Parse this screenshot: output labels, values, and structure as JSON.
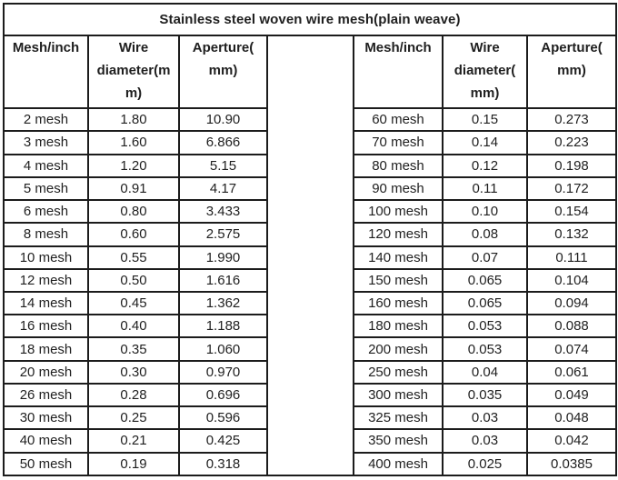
{
  "title": "Stainless steel woven wire mesh(plain weave)",
  "colors": {
    "background": "#ffffff",
    "border": "#1c1c1c",
    "text": "#1f1f1f"
  },
  "chart_data": {
    "type": "table",
    "title": "Stainless steel woven wire mesh(plain weave)",
    "tables": [
      {
        "position": "left",
        "headers": [
          "Mesh/inch",
          "Wire diameter(mm)",
          "Aperture(mm)"
        ],
        "header_display": [
          "Mesh/inch",
          "Wire\ndiameter(m\nm)",
          "Aperture(\nmm)"
        ],
        "rows": [
          [
            "2 mesh",
            "1.80",
            "10.90"
          ],
          [
            "3 mesh",
            "1.60",
            "6.866"
          ],
          [
            "4 mesh",
            "1.20",
            "5.15"
          ],
          [
            "5 mesh",
            "0.91",
            "4.17"
          ],
          [
            "6 mesh",
            "0.80",
            "3.433"
          ],
          [
            "8 mesh",
            "0.60",
            "2.575"
          ],
          [
            "10 mesh",
            "0.55",
            "1.990"
          ],
          [
            "12 mesh",
            "0.50",
            "1.616"
          ],
          [
            "14 mesh",
            "0.45",
            "1.362"
          ],
          [
            "16 mesh",
            "0.40",
            "1.188"
          ],
          [
            "18 mesh",
            "0.35",
            "1.060"
          ],
          [
            "20 mesh",
            "0.30",
            "0.970"
          ],
          [
            "26 mesh",
            "0.28",
            "0.696"
          ],
          [
            "30 mesh",
            "0.25",
            "0.596"
          ],
          [
            "40 mesh",
            "0.21",
            "0.425"
          ],
          [
            "50 mesh",
            "0.19",
            "0.318"
          ]
        ]
      },
      {
        "position": "right",
        "headers": [
          "Mesh/inch",
          "Wire diameter(mm)",
          "Aperture(mm)"
        ],
        "header_display": [
          "Mesh/inch",
          "Wire\ndiameter(\nmm)",
          "Aperture(\nmm)"
        ],
        "rows": [
          [
            "60 mesh",
            "0.15",
            "0.273"
          ],
          [
            "70 mesh",
            "0.14",
            "0.223"
          ],
          [
            "80 mesh",
            "0.12",
            "0.198"
          ],
          [
            "90 mesh",
            "0.11",
            "0.172"
          ],
          [
            "100 mesh",
            "0.10",
            "0.154"
          ],
          [
            "120 mesh",
            "0.08",
            "0.132"
          ],
          [
            "140 mesh",
            "0.07",
            "0.111"
          ],
          [
            "150 mesh",
            "0.065",
            "0.104"
          ],
          [
            "160 mesh",
            "0.065",
            "0.094"
          ],
          [
            "180 mesh",
            "0.053",
            "0.088"
          ],
          [
            "200 mesh",
            "0.053",
            "0.074"
          ],
          [
            "250 mesh",
            "0.04",
            "0.061"
          ],
          [
            "300 mesh",
            "0.035",
            "0.049"
          ],
          [
            "325 mesh",
            "0.03",
            "0.048"
          ],
          [
            "350 mesh",
            "0.03",
            "0.042"
          ],
          [
            "400 mesh",
            "0.025",
            "0.0385"
          ]
        ]
      }
    ]
  }
}
